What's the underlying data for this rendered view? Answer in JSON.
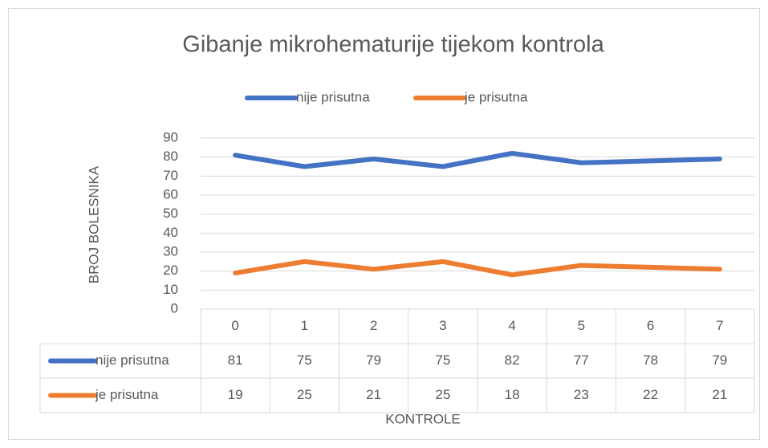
{
  "chart_data": {
    "type": "line",
    "title": "Gibanje mikrohematurije tijekom kontrola",
    "y_label": "BROJ BOLESNIKA",
    "x_label": "KONTROLE",
    "categories": [
      "0",
      "1",
      "2",
      "3",
      "4",
      "5",
      "6",
      "7"
    ],
    "series": [
      {
        "name": "nije prisutna",
        "color": "#4472c4",
        "values": [
          81,
          75,
          79,
          75,
          82,
          77,
          78,
          79
        ]
      },
      {
        "name": "je prisutna",
        "color": "#ed7d31",
        "values": [
          19,
          25,
          21,
          25,
          18,
          23,
          22,
          21
        ]
      }
    ],
    "ylim": [
      0,
      90
    ],
    "yticks": [
      0,
      10,
      20,
      30,
      40,
      50,
      60,
      70,
      80,
      90
    ],
    "grid": true,
    "legend": "top",
    "data_table": true
  }
}
